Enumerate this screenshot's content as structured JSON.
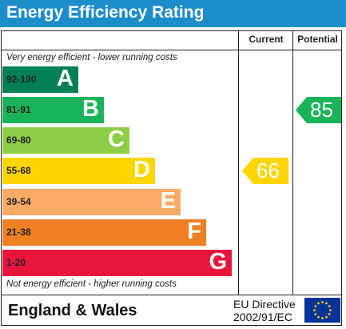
{
  "title": "Energy Efficiency Rating",
  "columns": {
    "current": "Current",
    "potential": "Potential"
  },
  "top_note": "Very energy efficient - lower running costs",
  "bottom_note": "Not energy efficient - higher running costs",
  "footer": {
    "country": "England & Wales",
    "directive_line1": "EU Directive",
    "directive_line2": "2002/91/EC"
  },
  "colors": {
    "title_bar": "#1c8dc9",
    "A": "#008054",
    "B": "#19b459",
    "C": "#8dce46",
    "D": "#ffd500",
    "E": "#fcaa65",
    "F": "#ef8023",
    "G": "#e9153b",
    "flag": "#003399",
    "stars": "#ffcc00"
  },
  "chart_data": {
    "type": "bar",
    "bands": [
      {
        "range": "92-100",
        "letter": "A"
      },
      {
        "range": "81-91",
        "letter": "B"
      },
      {
        "range": "69-80",
        "letter": "C"
      },
      {
        "range": "55-68",
        "letter": "D"
      },
      {
        "range": "39-54",
        "letter": "E"
      },
      {
        "range": "21-38",
        "letter": "F"
      },
      {
        "range": "1-20",
        "letter": "G"
      }
    ],
    "current": {
      "value": "66",
      "band": "D"
    },
    "potential": {
      "value": "85",
      "band": "B"
    }
  }
}
